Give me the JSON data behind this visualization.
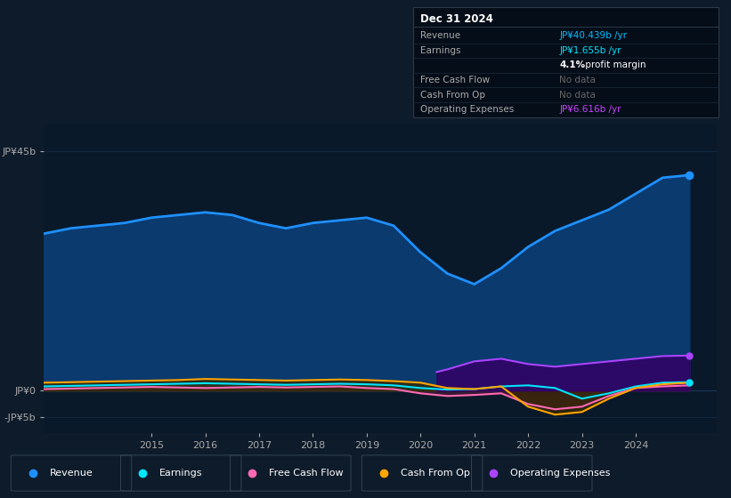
{
  "bg_color": "#0d1b2a",
  "chart_bg": "#0a1929",
  "title_box": {
    "date": "Dec 31 2024",
    "rows": [
      {
        "label": "Revenue",
        "value": "JP¥40.439b /yr",
        "value_color": "#00bfff",
        "label_color": "#aaaaaa"
      },
      {
        "label": "Earnings",
        "value": "JP¥1.655b /yr",
        "value_color": "#00e5ff",
        "label_color": "#aaaaaa"
      },
      {
        "label": "",
        "value": "4.1% profit margin",
        "value_color": "#ffffff",
        "label_color": "#aaaaaa"
      },
      {
        "label": "Free Cash Flow",
        "value": "No data",
        "value_color": "#666666",
        "label_color": "#aaaaaa"
      },
      {
        "label": "Cash From Op",
        "value": "No data",
        "value_color": "#666666",
        "label_color": "#aaaaaa"
      },
      {
        "label": "Operating Expenses",
        "value": "JP¥6.616b /yr",
        "value_color": "#cc44ff",
        "label_color": "#aaaaaa"
      }
    ]
  },
  "y_labels": [
    "JP¥45b",
    "JP¥0",
    "-JP¥5b"
  ],
  "y_ticks": [
    45,
    0,
    -5
  ],
  "ylim": [
    -8,
    50
  ],
  "xlim_start": 2013.0,
  "xlim_end": 2025.5,
  "x_ticks": [
    2015,
    2016,
    2017,
    2018,
    2019,
    2020,
    2021,
    2022,
    2023,
    2024
  ],
  "revenue": {
    "x": [
      2013.0,
      2013.5,
      2014.0,
      2014.5,
      2015.0,
      2015.5,
      2016.0,
      2016.5,
      2017.0,
      2017.5,
      2018.0,
      2018.5,
      2019.0,
      2019.5,
      2020.0,
      2020.5,
      2021.0,
      2021.5,
      2022.0,
      2022.5,
      2023.0,
      2023.5,
      2024.0,
      2024.5,
      2025.0
    ],
    "y": [
      29.5,
      30.5,
      31.0,
      31.5,
      32.5,
      33.0,
      33.5,
      33.0,
      31.5,
      30.5,
      31.5,
      32.0,
      32.5,
      31.0,
      26.0,
      22.0,
      20.0,
      23.0,
      27.0,
      30.0,
      32.0,
      34.0,
      37.0,
      40.0,
      40.5
    ],
    "color": "#1e90ff",
    "fill_color": "#0a3a6e",
    "linewidth": 2.0
  },
  "earnings": {
    "x": [
      2013.0,
      2013.5,
      2014.0,
      2014.5,
      2015.0,
      2015.5,
      2016.0,
      2016.5,
      2017.0,
      2017.5,
      2018.0,
      2018.5,
      2019.0,
      2019.5,
      2020.0,
      2020.5,
      2021.0,
      2021.5,
      2022.0,
      2022.5,
      2023.0,
      2023.5,
      2024.0,
      2024.5,
      2025.0
    ],
    "y": [
      0.8,
      0.9,
      1.0,
      1.1,
      1.2,
      1.3,
      1.4,
      1.3,
      1.2,
      1.1,
      1.2,
      1.3,
      1.2,
      1.0,
      0.5,
      0.2,
      0.3,
      0.8,
      1.0,
      0.5,
      -1.5,
      -0.5,
      0.8,
      1.5,
      1.6
    ],
    "color": "#00e5ff",
    "fill_color": "#004f5e",
    "linewidth": 1.5
  },
  "free_cash_flow": {
    "x": [
      2013.0,
      2013.5,
      2014.0,
      2014.5,
      2015.0,
      2015.5,
      2016.0,
      2016.5,
      2017.0,
      2017.5,
      2018.0,
      2018.5,
      2019.0,
      2019.5,
      2020.0,
      2020.5,
      2021.0,
      2021.5,
      2022.0,
      2022.5,
      2023.0,
      2023.5,
      2024.0,
      2024.5,
      2025.0
    ],
    "y": [
      0.3,
      0.4,
      0.5,
      0.6,
      0.7,
      0.6,
      0.5,
      0.6,
      0.7,
      0.6,
      0.7,
      0.8,
      0.5,
      0.3,
      -0.5,
      -1.0,
      -0.8,
      -0.5,
      -2.5,
      -3.5,
      -3.0,
      -1.0,
      0.5,
      0.8,
      1.0
    ],
    "color": "#ff69b4",
    "fill_color": "#4a1a3a",
    "linewidth": 1.5
  },
  "cash_from_op": {
    "x": [
      2013.0,
      2013.5,
      2014.0,
      2014.5,
      2015.0,
      2015.5,
      2016.0,
      2016.5,
      2017.0,
      2017.5,
      2018.0,
      2018.5,
      2019.0,
      2019.5,
      2020.0,
      2020.5,
      2021.0,
      2021.5,
      2022.0,
      2022.5,
      2023.0,
      2023.5,
      2024.0,
      2024.5,
      2025.0
    ],
    "y": [
      1.5,
      1.6,
      1.7,
      1.8,
      1.9,
      2.0,
      2.2,
      2.1,
      2.0,
      1.9,
      2.0,
      2.1,
      2.0,
      1.8,
      1.5,
      0.5,
      0.3,
      0.8,
      -3.0,
      -4.5,
      -4.0,
      -1.5,
      0.5,
      1.2,
      1.5
    ],
    "color": "#ffa500",
    "fill_color": "#3a2a00",
    "linewidth": 1.5
  },
  "op_expenses": {
    "x": [
      2020.3,
      2020.5,
      2021.0,
      2021.5,
      2022.0,
      2022.5,
      2023.0,
      2023.5,
      2024.0,
      2024.5,
      2025.0
    ],
    "y": [
      3.5,
      4.0,
      5.5,
      6.0,
      5.0,
      4.5,
      5.0,
      5.5,
      6.0,
      6.5,
      6.6
    ],
    "color": "#aa44ff",
    "fill_color": "#330066",
    "linewidth": 1.5
  },
  "legend": [
    {
      "label": "Revenue",
      "color": "#1e90ff"
    },
    {
      "label": "Earnings",
      "color": "#00e5ff"
    },
    {
      "label": "Free Cash Flow",
      "color": "#ff69b4"
    },
    {
      "label": "Cash From Op",
      "color": "#ffa500"
    },
    {
      "label": "Operating Expenses",
      "color": "#aa44ff"
    }
  ],
  "grid_color": "#1a3a5c",
  "grid_alpha": 0.5,
  "tick_color": "#aaaaaa"
}
